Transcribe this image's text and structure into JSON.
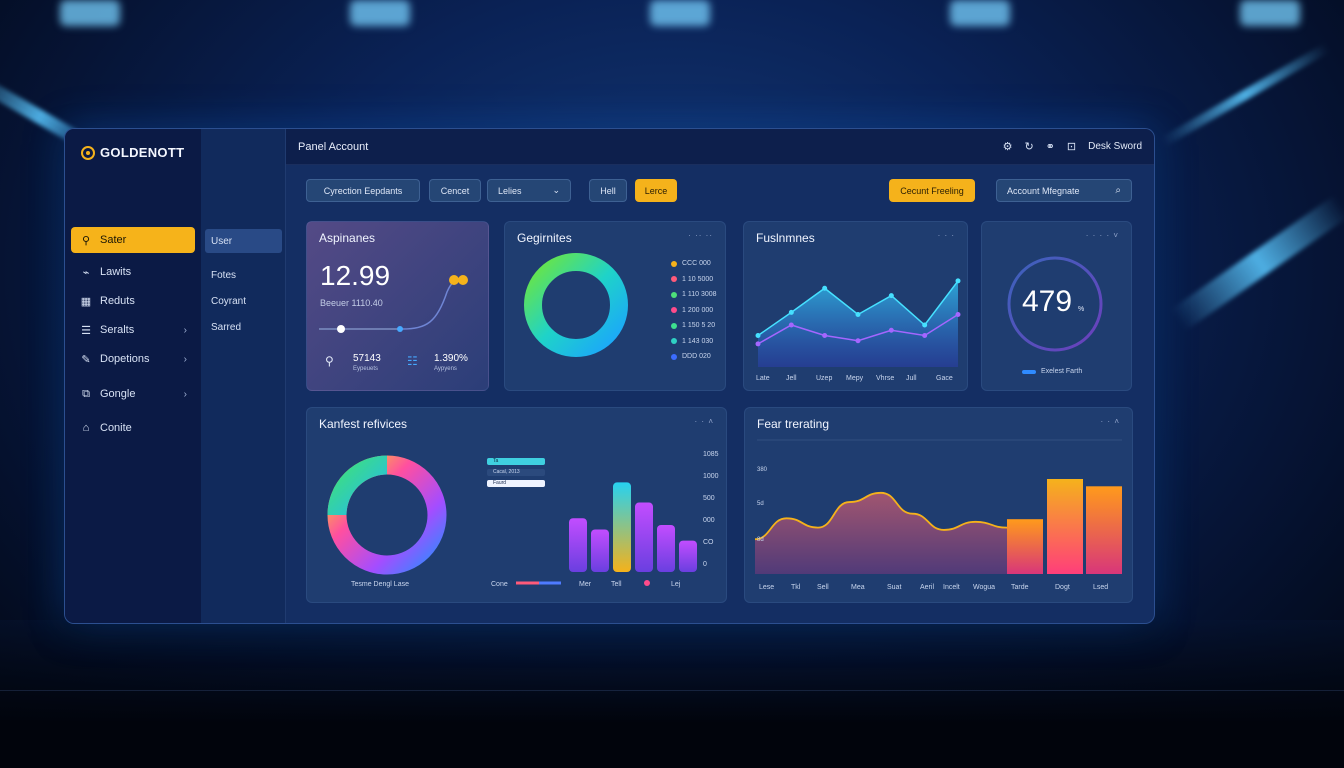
{
  "app": {
    "brand": "GOLDENOTT",
    "title": "Panel Account",
    "user": "Desk Sword"
  },
  "sidebar": {
    "items": [
      {
        "label": "Sater",
        "icon": "user-icon",
        "active": true
      },
      {
        "label": "Lawits",
        "icon": "chart-icon"
      },
      {
        "label": "Reduts",
        "icon": "grid-icon"
      },
      {
        "label": "Seralts",
        "icon": "list-icon",
        "chevron": "›"
      },
      {
        "label": "Dopetions",
        "icon": "edit-icon",
        "chevron": "›"
      },
      {
        "label": "Gongle",
        "icon": "layers-icon",
        "chevron": "›"
      },
      {
        "label": "Conite",
        "icon": "home-icon"
      }
    ]
  },
  "subnav": {
    "items": [
      "User",
      "Fotes",
      "Coyrant",
      "Sarred"
    ]
  },
  "toolbar": {
    "b1": "Cyrection Eepdants",
    "b2": "Cencet",
    "b3": "Lelies",
    "b4": "Hell",
    "b5": "Lerce",
    "cta": "Cecunt Freeling",
    "search_placeholder": "Account Mfegnate"
  },
  "cards": {
    "c1": {
      "title": "Aspinanes",
      "value": "12.99",
      "sub": "Beeuer 1110.40",
      "stat1": "57143",
      "stat1_sub": "Eypeuets",
      "stat2": "1.390%",
      "stat2_sub": "Aypyens"
    },
    "c2": {
      "title": "Gegirnites",
      "dots": "· ·· ··",
      "legend": [
        {
          "label": "CCC 000",
          "color": "#f5b21b"
        },
        {
          "label": "1 10 5000",
          "color": "#ff5a7a"
        },
        {
          "label": "1 110 3008",
          "color": "#4de07a"
        },
        {
          "label": "1 200 000",
          "color": "#ff4b8b"
        },
        {
          "label": "1 150 5 20",
          "color": "#3ee08f"
        },
        {
          "label": "1 143 030",
          "color": "#2fd1c4"
        },
        {
          "label": "DDD 020",
          "color": "#3b6cff"
        }
      ]
    },
    "c3": {
      "title": "Fuslnmnes",
      "dots": "· · ·",
      "xlabels": [
        "Late",
        "Jell",
        "Uzep",
        "Mepy",
        "Vhrse",
        "Jull",
        "Gace"
      ]
    },
    "c4": {
      "title": "",
      "dots": "· · · ·  ˅",
      "value": "479",
      "unit": "%",
      "legend": "Exelest Farth",
      "level": 0.79
    },
    "c5": {
      "title": "Kanfest refivices",
      "dots": "· ·  ˄",
      "donut_labels": "Tesme   Dengl   Lase",
      "legend": [
        "Ta",
        "Cacal, 2013",
        "Faurd"
      ],
      "ylabels": [
        "1085",
        "1000",
        "500",
        "000",
        "CO",
        "0"
      ],
      "xlabels": [
        "Cone",
        "Mer",
        "Tell",
        "Lej"
      ]
    },
    "c6": {
      "title": "Fear trerating",
      "dots": "· ·  ˄",
      "ylabels": [
        "380",
        "5d",
        "8d"
      ],
      "xlabels": [
        "Lese",
        "Tkl",
        "Sell",
        "Mea",
        "Suat",
        "Aeril",
        "Incelt",
        "Wogua",
        "Tarde",
        "Dogt",
        "Lsed"
      ]
    }
  },
  "chart_data": [
    {
      "type": "line",
      "series": [
        {
          "values": [
            30,
            52,
            75,
            50,
            68,
            40,
            82
          ]
        },
        {
          "values": [
            22,
            40,
            30,
            25,
            35,
            30,
            50
          ]
        }
      ]
    },
    {
      "type": "bar",
      "values": [
        48,
        38,
        80,
        62,
        42,
        28
      ]
    },
    {
      "type": "area",
      "values": [
        30,
        48,
        40,
        62,
        70,
        52,
        38,
        45,
        40
      ],
      "bars": [
        45,
        78,
        72
      ]
    }
  ]
}
